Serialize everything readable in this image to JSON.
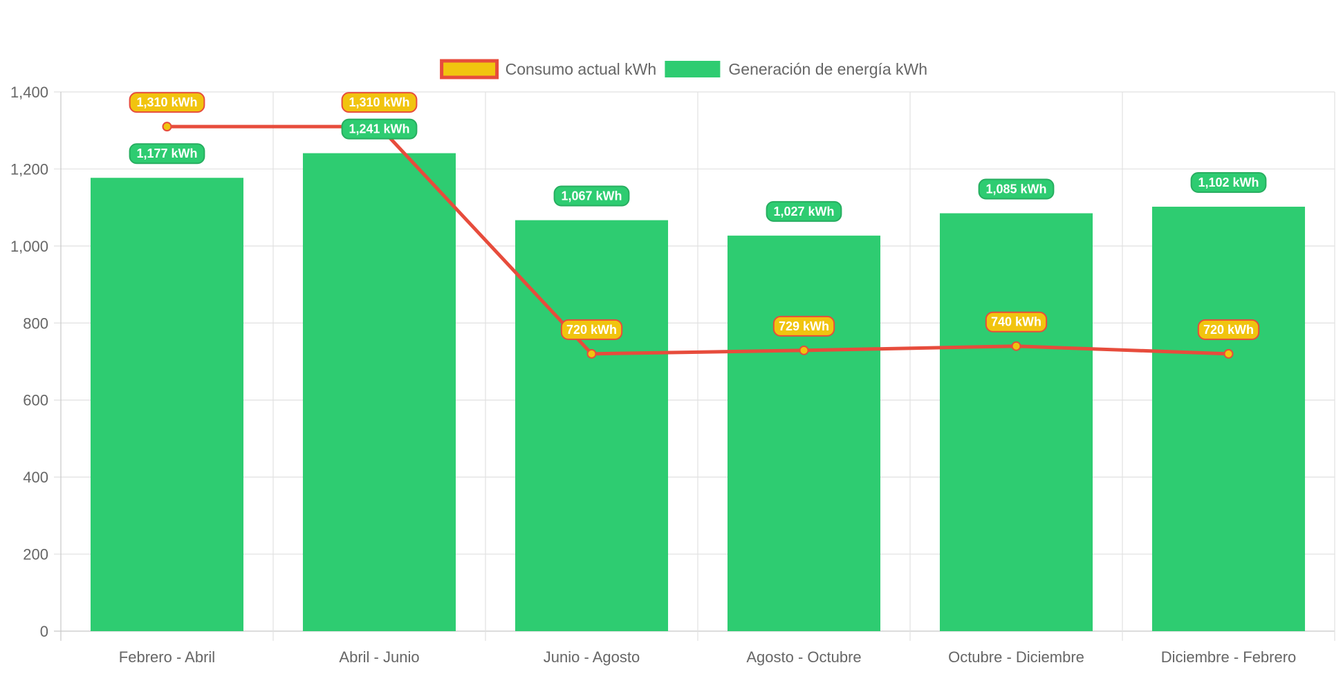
{
  "chart_data": {
    "type": "bar",
    "categories": [
      "Febrero - Abril",
      "Abril - Junio",
      "Junio - Agosto",
      "Agosto - Octubre",
      "Octubre - Diciembre",
      "Diciembre - Febrero"
    ],
    "series": [
      {
        "name": "Consumo actual kWh",
        "type": "line",
        "values": [
          1310,
          1310,
          720,
          729,
          740,
          720
        ],
        "labels": [
          "1,310 kWh",
          "1,310 kWh",
          "720 kWh",
          "729 kWh",
          "740 kWh",
          "720 kWh"
        ],
        "line_color": "#e74c3c",
        "point_color": "#f1c40f"
      },
      {
        "name": "Generación de energía kWh",
        "type": "bar",
        "values": [
          1177,
          1241,
          1067,
          1027,
          1085,
          1102
        ],
        "labels": [
          "1,177 kWh",
          "1,241 kWh",
          "1,067 kWh",
          "1,027 kWh",
          "1,085 kWh",
          "1,102 kWh"
        ],
        "color": "#2ecc71"
      }
    ],
    "ylim": [
      0,
      1400
    ],
    "y_ticks": [
      "0",
      "200",
      "400",
      "600",
      "800",
      "1,000",
      "1,200",
      "1,400"
    ],
    "grid": true,
    "legend_position": "top"
  }
}
